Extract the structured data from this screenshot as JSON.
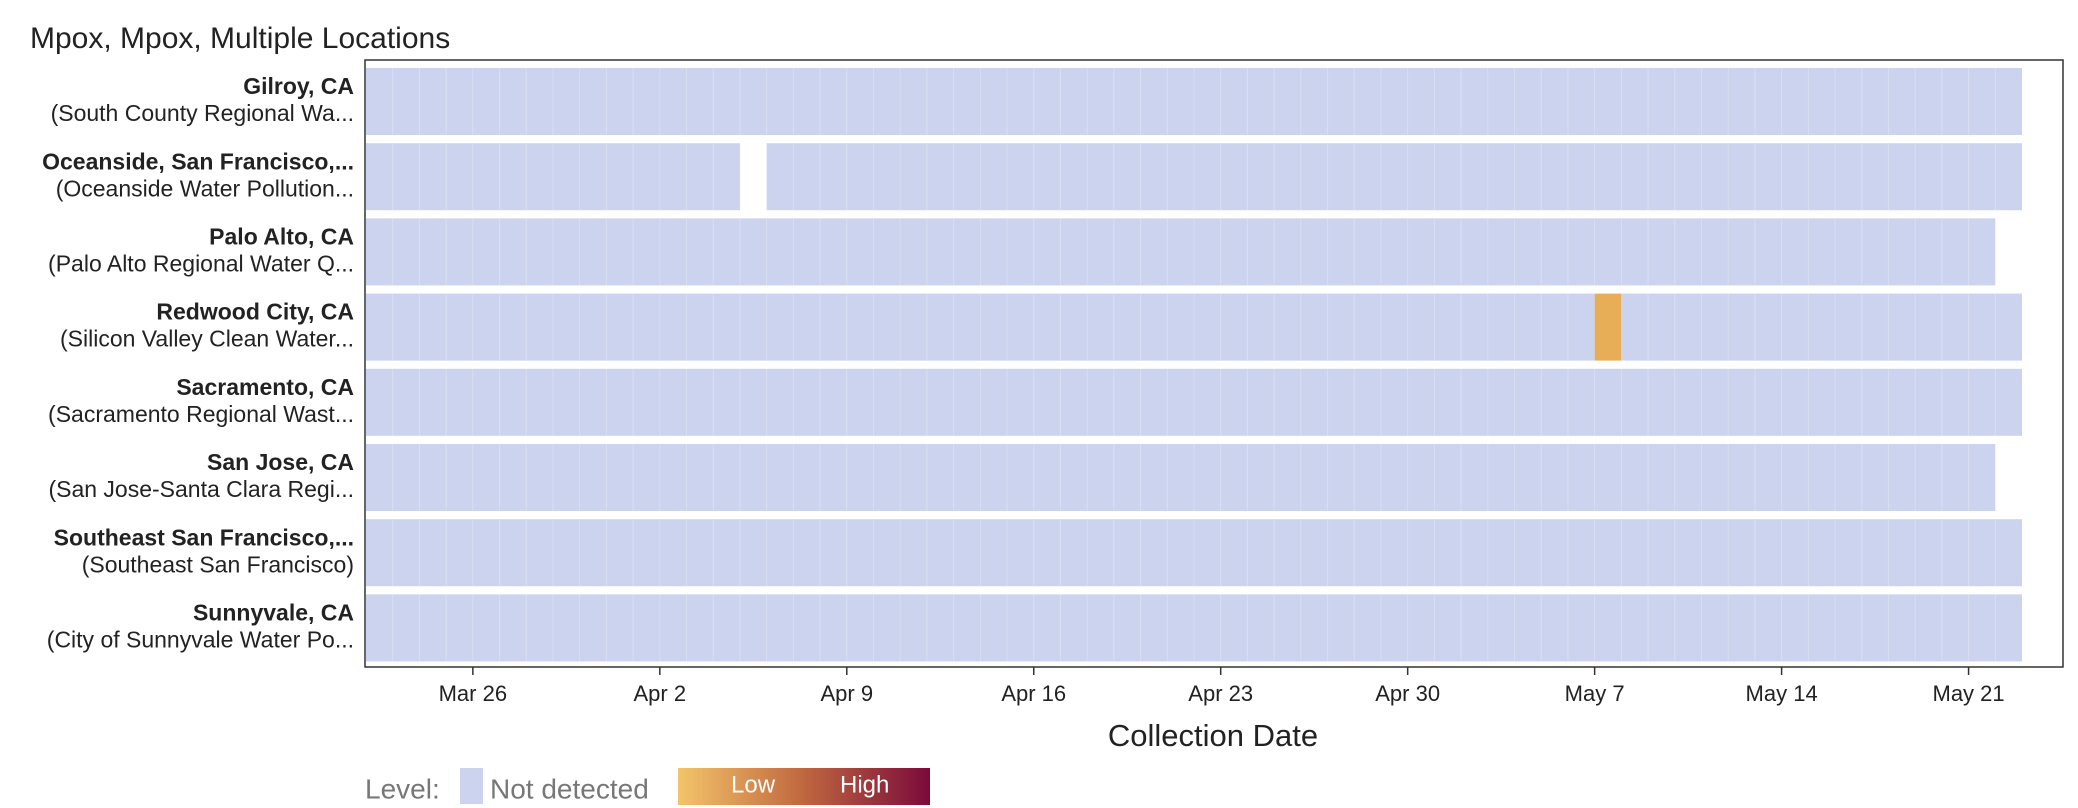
{
  "chart_data": {
    "type": "timeline-heatmap",
    "title": "Mpox, Mpox, Multiple Locations",
    "x_label": "Collection Date",
    "xlim": [
      "Mar 22",
      "May 23"
    ],
    "xticks": [
      "Mar 26",
      "Apr 2",
      "Apr 9",
      "Apr 16",
      "Apr 23",
      "Apr 30",
      "May 7",
      "May 14",
      "May 21"
    ],
    "level_colors": {
      "Not detected": "#ccd3ee",
      "Low": "#e8ad57"
    },
    "rows": [
      {
        "name": "Gilroy, CA",
        "site": "(South County Regional Wa...",
        "periods": [
          {
            "start": "Mar 22",
            "end": "May 22",
            "level": "Not detected"
          }
        ]
      },
      {
        "name": "Oceanside, San Francisco,...",
        "site": "(Oceanside Water Pollution...",
        "periods": [
          {
            "start": "Mar 22",
            "end": "Apr 4",
            "level": "Not detected"
          },
          {
            "start": "Apr 6",
            "end": "May 22",
            "level": "Not detected"
          }
        ]
      },
      {
        "name": "Palo Alto, CA",
        "site": "(Palo Alto Regional Water Q...",
        "periods": [
          {
            "start": "Mar 22",
            "end": "May 21",
            "level": "Not detected"
          }
        ]
      },
      {
        "name": "Redwood City, CA",
        "site": "(Silicon Valley Clean Water...",
        "periods": [
          {
            "start": "Mar 22",
            "end": "May 6",
            "level": "Not detected"
          },
          {
            "start": "May 7",
            "end": "May 7",
            "level": "Low"
          },
          {
            "start": "May 8",
            "end": "May 22",
            "level": "Not detected"
          }
        ]
      },
      {
        "name": "Sacramento, CA",
        "site": "(Sacramento Regional Wast...",
        "periods": [
          {
            "start": "Mar 22",
            "end": "May 22",
            "level": "Not detected"
          }
        ]
      },
      {
        "name": "San Jose, CA",
        "site": "(San Jose-Santa Clara Regi...",
        "periods": [
          {
            "start": "Mar 22",
            "end": "May 21",
            "level": "Not detected"
          }
        ]
      },
      {
        "name": "Southeast San Francisco,...",
        "site": "(Southeast San Francisco)",
        "periods": [
          {
            "start": "Mar 22",
            "end": "May 22",
            "level": "Not detected"
          }
        ]
      },
      {
        "name": "Sunnyvale, CA",
        "site": "(City of Sunnyvale Water Po...",
        "periods": [
          {
            "start": "Mar 22",
            "end": "May 22",
            "level": "Not detected"
          }
        ]
      }
    ],
    "legend": {
      "title": "Level:",
      "swatch_label": "Not detected",
      "gradient_low": "Low",
      "gradient_high": "High",
      "gradient_colors": [
        "#f3c46a",
        "#c0673f",
        "#7a0a3a"
      ]
    }
  }
}
